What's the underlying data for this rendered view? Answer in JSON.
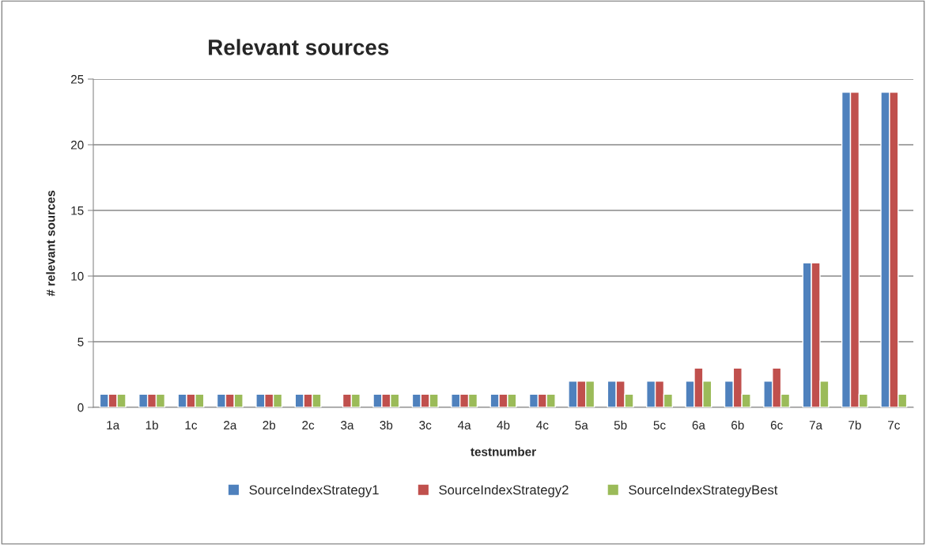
{
  "chart_data": {
    "type": "bar",
    "title": "Relevant sources",
    "xlabel": "testnumber",
    "ylabel": "# relevant sources",
    "categories": [
      "1a",
      "1b",
      "1c",
      "2a",
      "2b",
      "2c",
      "3a",
      "3b",
      "3c",
      "4a",
      "4b",
      "4c",
      "5a",
      "5b",
      "5c",
      "6a",
      "6b",
      "6c",
      "7a",
      "7b",
      "7c"
    ],
    "series": [
      {
        "name": "SourceIndexStrategy1",
        "color": "#4f81bd",
        "values": [
          1,
          1,
          1,
          1,
          1,
          1,
          null,
          1,
          1,
          1,
          1,
          1,
          2,
          2,
          2,
          2,
          2,
          2,
          11,
          24,
          24
        ]
      },
      {
        "name": "SourceIndexStrategy2",
        "color": "#c0504d",
        "values": [
          1,
          1,
          1,
          1,
          1,
          1,
          1,
          1,
          1,
          1,
          1,
          1,
          2,
          2,
          2,
          3,
          3,
          3,
          11,
          24,
          24
        ]
      },
      {
        "name": "SourceIndexStrategyBest",
        "color": "#9bbb59",
        "values": [
          1,
          1,
          1,
          1,
          1,
          1,
          1,
          1,
          1,
          1,
          1,
          1,
          2,
          1,
          1,
          2,
          1,
          1,
          2,
          1,
          1
        ]
      }
    ],
    "ylim": [
      0,
      25
    ],
    "yticks": [
      0,
      5,
      10,
      15,
      20,
      25
    ],
    "grid": "y",
    "legend": "bottom"
  }
}
